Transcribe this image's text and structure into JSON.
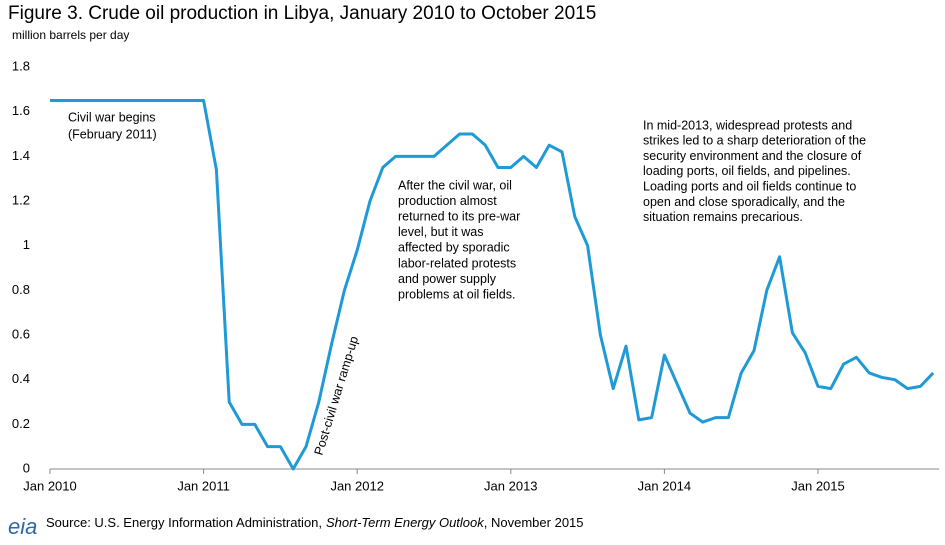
{
  "chart_data": {
    "type": "line",
    "title": "Figure 3. Crude oil production in Libya, January 2010 to October 2015",
    "y_label": "million barrels  per day",
    "categories": [
      "Jan 2010",
      null,
      null,
      null,
      null,
      null,
      null,
      null,
      null,
      null,
      null,
      null,
      "Jan 2011",
      null,
      null,
      null,
      null,
      null,
      null,
      null,
      null,
      null,
      null,
      null,
      "Jan 2012",
      null,
      null,
      null,
      null,
      null,
      null,
      null,
      null,
      null,
      null,
      null,
      "Jan 2013",
      null,
      null,
      null,
      null,
      null,
      null,
      null,
      null,
      null,
      null,
      null,
      "Jan 2014",
      null,
      null,
      null,
      null,
      null,
      null,
      null,
      null,
      null,
      null,
      null,
      "Jan 2015",
      null,
      null,
      null,
      null,
      null,
      null,
      null,
      null,
      null
    ],
    "series": [
      {
        "color": "#1f9ad6",
        "values": [
          1.65,
          1.65,
          1.65,
          1.65,
          1.65,
          1.65,
          1.65,
          1.65,
          1.65,
          1.65,
          1.65,
          1.65,
          1.65,
          1.34,
          0.3,
          0.2,
          0.2,
          0.1,
          0.1,
          0.0,
          0.1,
          0.3,
          0.56,
          0.8,
          0.98,
          1.2,
          1.35,
          1.4,
          1.4,
          1.4,
          1.4,
          1.45,
          1.5,
          1.5,
          1.45,
          1.35,
          1.35,
          1.4,
          1.35,
          1.45,
          1.42,
          1.13,
          1.0,
          0.6,
          0.36,
          0.55,
          0.22,
          0.23,
          0.51,
          0.38,
          0.25,
          0.21,
          0.23,
          0.23,
          0.43,
          0.53,
          0.8,
          0.95,
          0.61,
          0.52,
          0.37,
          0.36,
          0.47,
          0.5,
          0.43,
          0.41,
          0.4,
          0.36,
          0.37,
          0.43
        ]
      }
    ],
    "ylim": [
      0,
      1.8
    ],
    "yticks": [
      0,
      0.2,
      0.4,
      0.6,
      0.8,
      1,
      1.2,
      1.4,
      1.6,
      1.8
    ],
    "grid": false,
    "annotations": [
      {
        "lines": [
          "Civil war begins",
          "(February 2011)"
        ]
      },
      {
        "lines": [
          "Post-civil war ramp-up"
        ]
      },
      {
        "lines": [
          "After the civil war, oil",
          "production almost",
          "returned to its pre-war",
          "level, but it was",
          "affected by sporadic",
          "labor-related protests",
          "and power supply",
          "problems at oil fields."
        ]
      },
      {
        "lines": [
          "In mid-2013, widespread protests and",
          "strikes led to a sharp deterioration of the",
          "security environment and the closure of",
          "loading ports, oil fields, and pipelines.",
          "Loading ports and oil fields continue to",
          "open and close sporadically, and the",
          "situation remains precarious."
        ]
      }
    ],
    "source": [
      "Source: U.S. Energy Information Administration,",
      "Short-Term Energy Outlook",
      ", November 2015"
    ],
    "logo": "eia"
  }
}
